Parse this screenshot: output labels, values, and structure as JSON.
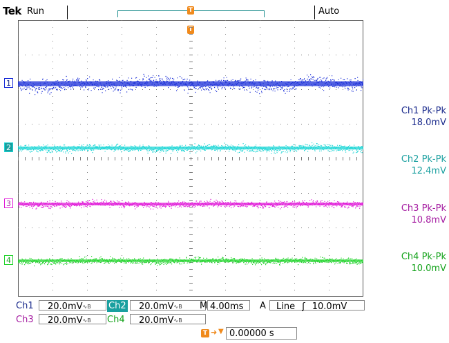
{
  "header": {
    "brand": "Tek",
    "run_state": "Run",
    "trigger_mode": "Auto",
    "trigger_marker": "T"
  },
  "channels": [
    {
      "id": "1",
      "color": "#1a2ed8",
      "pkpk_label": "Ch1 Pk-Pk",
      "pkpk_value": "18.0mV",
      "scale_label": "Ch1",
      "scale": "20.0mV"
    },
    {
      "id": "2",
      "color": "#1cd6d6",
      "pkpk_label": "Ch2 Pk-Pk",
      "pkpk_value": "12.4mV",
      "scale_label": "Ch2",
      "scale": "20.0mV"
    },
    {
      "id": "3",
      "color": "#e01ad8",
      "pkpk_label": "Ch3 Pk-Pk",
      "pkpk_value": "10.8mV",
      "scale_label": "Ch3",
      "scale": "20.0mV"
    },
    {
      "id": "4",
      "color": "#22d42c",
      "pkpk_label": "Ch4 Pk-Pk",
      "pkpk_value": "10.0mV",
      "scale_label": "Ch4",
      "scale": "20.0mV"
    }
  ],
  "label_colors": {
    "ch1": "#1a2a8c",
    "ch2": "#1aa0a0",
    "ch3": "#a41aa0",
    "ch4": "#13a21a"
  },
  "bandwidth_symbol": "∿B",
  "horizontal": {
    "label": "M",
    "scale": "4.00ms"
  },
  "trigger": {
    "label": "A",
    "source": "Line",
    "slope_symbol": "ʃ",
    "level": "10.0mV"
  },
  "position": {
    "value": "0.00000 s"
  }
}
